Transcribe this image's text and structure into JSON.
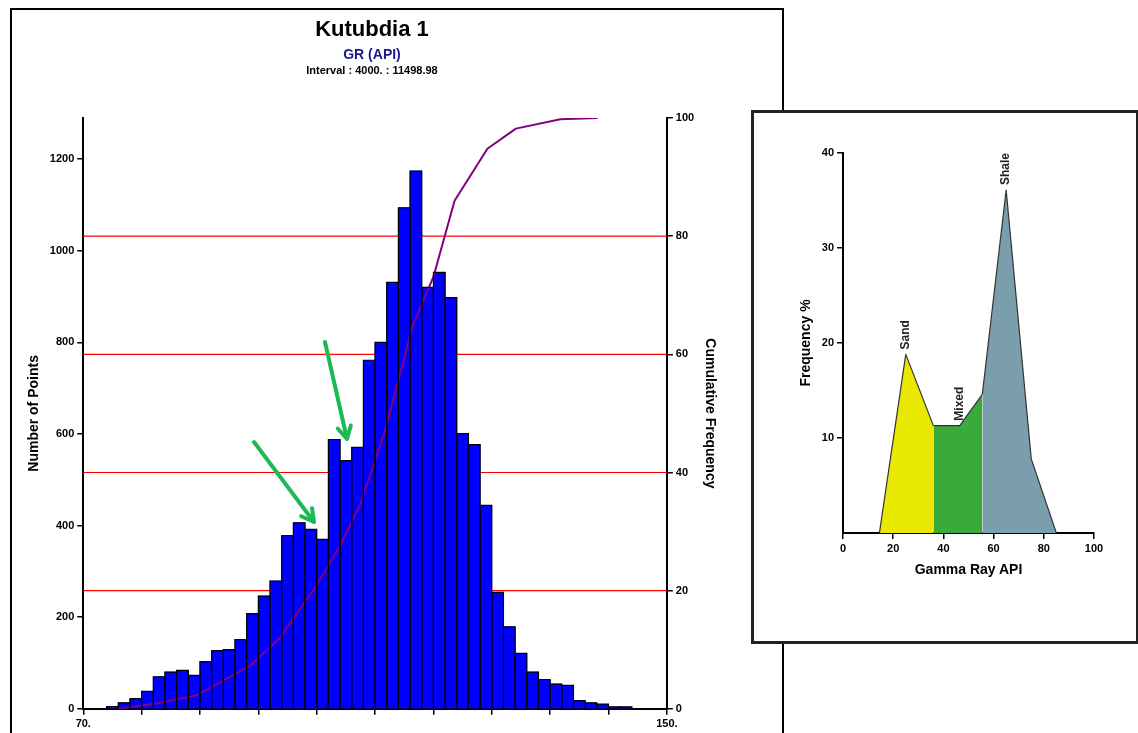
{
  "chart_data": [
    {
      "type": "histogram",
      "title": "Kutubdia 1",
      "subtitle": "GR (API)",
      "annotations": [
        "Interval : 4000. : 11498.98"
      ],
      "xlabel": null,
      "ylabel": "Number of Points",
      "y2label": "Cumulative Frequency",
      "bins": [
        73.2,
        74.8,
        76.4,
        78,
        79.6,
        81.2,
        82.8,
        84.4,
        86,
        87.6,
        89.2,
        90.8,
        92.4,
        94,
        95.6,
        97.2,
        98.8,
        100.4,
        102,
        103.6,
        105.2,
        106.8,
        108.4,
        110,
        111.6,
        113.2,
        114.8,
        116.4,
        118,
        119.6,
        121.2,
        122.8,
        124.4,
        126,
        127.6,
        129.2,
        130.8,
        132.4,
        134,
        135.6,
        137.2,
        138.8,
        140.4,
        142,
        143.6,
        145.2
      ],
      "values": [
        5,
        13,
        22,
        38,
        70,
        80,
        84,
        73,
        103,
        127,
        129,
        151,
        208,
        246,
        279,
        378,
        406,
        392,
        370,
        588,
        542,
        571,
        761,
        800,
        931,
        1094,
        1174,
        920,
        953,
        898,
        601,
        577,
        444,
        254,
        179,
        121,
        80,
        64,
        54,
        51,
        18,
        13,
        10,
        4,
        4
      ],
      "color": "#0000ff",
      "series": [
        {
          "type": "line",
          "axis": "y2",
          "color": "#800080",
          "x": [
            74.7,
            80,
            85.6,
            92.9,
            96.8,
            101.8,
            105.2,
            108,
            111.3,
            113.5,
            115.2,
            118,
            120.9,
            125.4,
            129.3,
            135.4,
            140.5
          ],
          "values": [
            0,
            0.9,
            2.3,
            7.3,
            11.8,
            20.5,
            27.6,
            34.7,
            46.8,
            57,
            65,
            73.1,
            86,
            94.8,
            98.2,
            99.8,
            100
          ]
        }
      ],
      "xlim": [
        70,
        150
      ],
      "xticks": [
        {
          "value": 70,
          "label": "70."
        },
        {
          "value": 78,
          "label": null
        },
        {
          "value": 86,
          "label": null
        },
        {
          "value": 94,
          "label": null
        },
        {
          "value": 102,
          "label": null
        },
        {
          "value": 110,
          "label": null
        },
        {
          "value": 118,
          "label": null
        },
        {
          "value": 126,
          "label": null
        },
        {
          "value": 134,
          "label": null
        },
        {
          "value": 142,
          "label": null
        },
        {
          "value": 150,
          "label": "150."
        }
      ],
      "ylim": [
        0,
        1290
      ],
      "yticks": [
        0,
        200,
        400,
        600,
        800,
        1000,
        1200
      ],
      "y2lim": [
        0,
        100
      ],
      "y2ticks": [
        0,
        20,
        40,
        60,
        80,
        100
      ],
      "ref_lines": [
        {
          "axis": "y2",
          "value": 20,
          "color": "#ff0000"
        },
        {
          "axis": "y2",
          "value": 40,
          "color": "#ff0000"
        },
        {
          "axis": "y2",
          "value": 60,
          "color": "#ff0000"
        },
        {
          "axis": "y2",
          "value": 80,
          "color": "#ff0000"
        }
      ]
    },
    {
      "type": "area",
      "xlabel": "Gamma Ray API",
      "ylabel": "Frequency %",
      "series": [
        {
          "name": "Sand",
          "color": "#e8e800",
          "x": [
            14.5,
            25,
            36
          ],
          "values": [
            0,
            18.8,
            11.3
          ]
        },
        {
          "name": "Mixed",
          "color": "#3aaa3a",
          "x": [
            36,
            46.5,
            55.5
          ],
          "values": [
            11.3,
            11.3,
            14.6
          ]
        },
        {
          "name": "Shale",
          "color": "#7a9eab",
          "x": [
            55.5,
            65,
            75,
            85
          ],
          "values": [
            14.6,
            36.1,
            7.8,
            0
          ]
        }
      ],
      "xlim": [
        0,
        100
      ],
      "xticks": [
        0,
        20,
        40,
        60,
        80,
        100
      ],
      "ylim": [
        0,
        40
      ],
      "yticks": [
        10,
        20,
        30,
        40
      ]
    }
  ]
}
